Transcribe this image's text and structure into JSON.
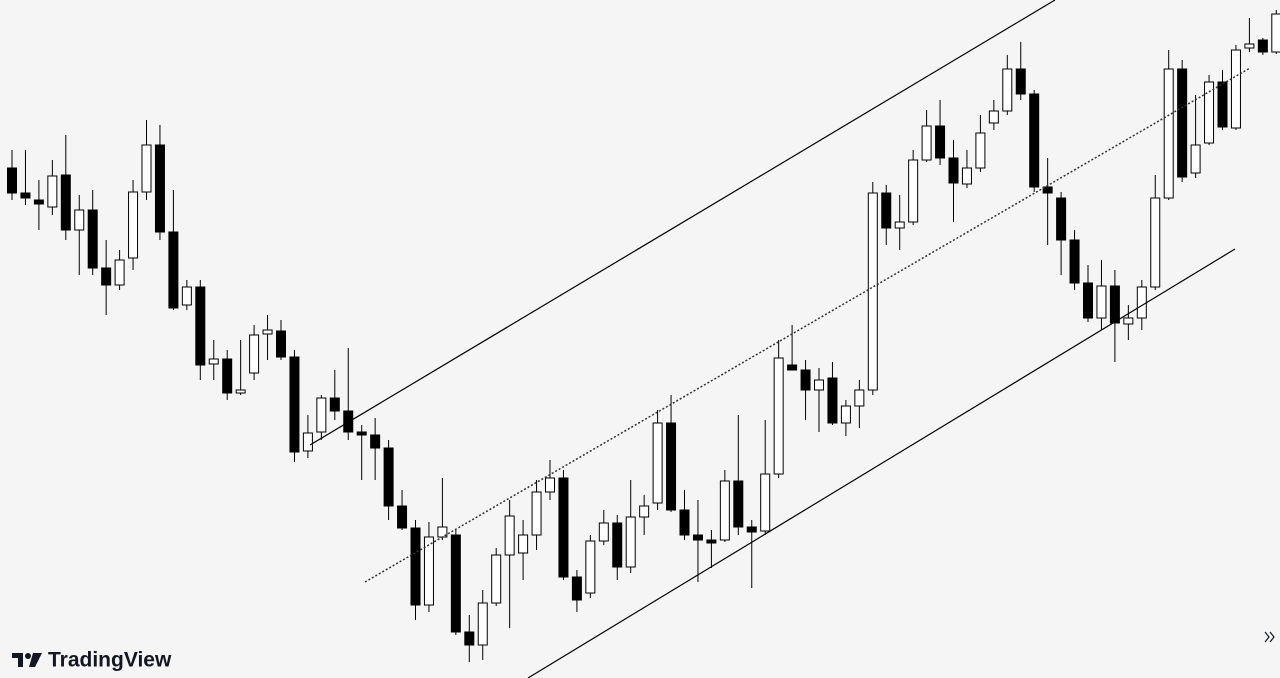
{
  "chart_data": {
    "type": "candlestick",
    "watermark": "TradingView",
    "up_color": "#ffffff",
    "down_color": "#000000",
    "wick_color": "#000000",
    "ylim": [
      0,
      678
    ],
    "categories": [
      null,
      null,
      null,
      null,
      null,
      null,
      null,
      null,
      null,
      null,
      null,
      null,
      null,
      null,
      null,
      null,
      null,
      null,
      null,
      null,
      null,
      null,
      null,
      null,
      null,
      null,
      null,
      null,
      null,
      null,
      null,
      null,
      null,
      null,
      null,
      null,
      null,
      null,
      null,
      null,
      null,
      null,
      null,
      null,
      null,
      null,
      null,
      null,
      null,
      null,
      null,
      null,
      null,
      null,
      null,
      null,
      null,
      null,
      null,
      null,
      null,
      null,
      null,
      null,
      null,
      null,
      null,
      null,
      null,
      null,
      null,
      null,
      null,
      null,
      null,
      null,
      null,
      null,
      null,
      null,
      null,
      null,
      null,
      null,
      null,
      null,
      null,
      null,
      null,
      null,
      null,
      null,
      null,
      null,
      null
    ],
    "open": [
      510,
      485,
      478,
      471,
      503,
      448,
      468,
      410,
      393,
      420,
      486,
      533,
      446,
      373,
      391,
      314,
      319,
      285,
      305,
      344,
      347,
      321,
      227,
      246,
      280,
      267,
      246,
      243,
      230,
      172,
      150,
      73,
      141,
      143,
      46,
      33,
      75,
      123,
      125,
      143,
      186,
      200,
      101,
      85,
      137,
      155,
      111,
      161,
      175,
      255,
      168,
      143,
      138,
      138,
      197,
      151,
      147,
      204,
      313,
      308,
      288,
      300,
      255,
      272,
      288,
      485,
      450,
      456,
      518,
      552,
      520,
      494,
      510,
      555,
      567,
      609,
      584,
      491,
      480,
      438,
      395,
      360,
      392,
      354,
      360,
      391,
      480,
      609,
      505,
      535,
      596,
      550,
      630,
      638,
      626
    ],
    "high": [
      528,
      528,
      498,
      518,
      543,
      483,
      488,
      438,
      428,
      498,
      558,
      553,
      488,
      398,
      398,
      338,
      328,
      338,
      353,
      363,
      358,
      328,
      263,
      283,
      308,
      330,
      253,
      260,
      238,
      188,
      158,
      156,
      200,
      148,
      63,
      88,
      130,
      178,
      158,
      198,
      218,
      208,
      108,
      143,
      168,
      163,
      198,
      183,
      268,
      283,
      188,
      178,
      148,
      208,
      263,
      158,
      258,
      338,
      353,
      318,
      310,
      316,
      278,
      298,
      496,
      493,
      483,
      528,
      568,
      578,
      538,
      528,
      563,
      578,
      623,
      636,
      588,
      520,
      486,
      448,
      413,
      418,
      408,
      373,
      398,
      503,
      628,
      618,
      583,
      603,
      608,
      633,
      660,
      640,
      668
    ],
    "low": [
      478,
      473,
      448,
      463,
      438,
      403,
      403,
      363,
      388,
      408,
      478,
      438,
      368,
      368,
      298,
      298,
      278,
      283,
      298,
      318,
      318,
      216,
      220,
      238,
      258,
      238,
      198,
      198,
      158,
      148,
      58,
      66,
      138,
      43,
      16,
      18,
      72,
      50,
      98,
      128,
      178,
      98,
      66,
      80,
      133,
      98,
      105,
      143,
      168,
      166,
      138,
      96,
      110,
      136,
      143,
      90,
      143,
      200,
      308,
      258,
      246,
      253,
      242,
      250,
      283,
      433,
      428,
      453,
      516,
      513,
      456,
      490,
      506,
      548,
      563,
      578,
      486,
      433,
      403,
      388,
      356,
      348,
      316,
      338,
      348,
      388,
      478,
      496,
      500,
      533,
      548,
      548,
      626,
      623,
      624
    ],
    "close": [
      485,
      480,
      474,
      502,
      448,
      468,
      410,
      393,
      418,
      486,
      533,
      446,
      370,
      391,
      313,
      319,
      285,
      288,
      343,
      348,
      321,
      226,
      245,
      280,
      267,
      246,
      243,
      230,
      172,
      150,
      73,
      141,
      151,
      46,
      33,
      75,
      123,
      162,
      143,
      186,
      200,
      101,
      78,
      137,
      155,
      111,
      161,
      172,
      255,
      168,
      143,
      138,
      135,
      197,
      151,
      146,
      204,
      320,
      308,
      288,
      298,
      255,
      272,
      288,
      485,
      450,
      456,
      518,
      552,
      520,
      495,
      510,
      545,
      567,
      609,
      584,
      491,
      485,
      438,
      395,
      360,
      392,
      355,
      360,
      391,
      480,
      609,
      501,
      533,
      596,
      551,
      628,
      634,
      626,
      664
    ]
  }
}
